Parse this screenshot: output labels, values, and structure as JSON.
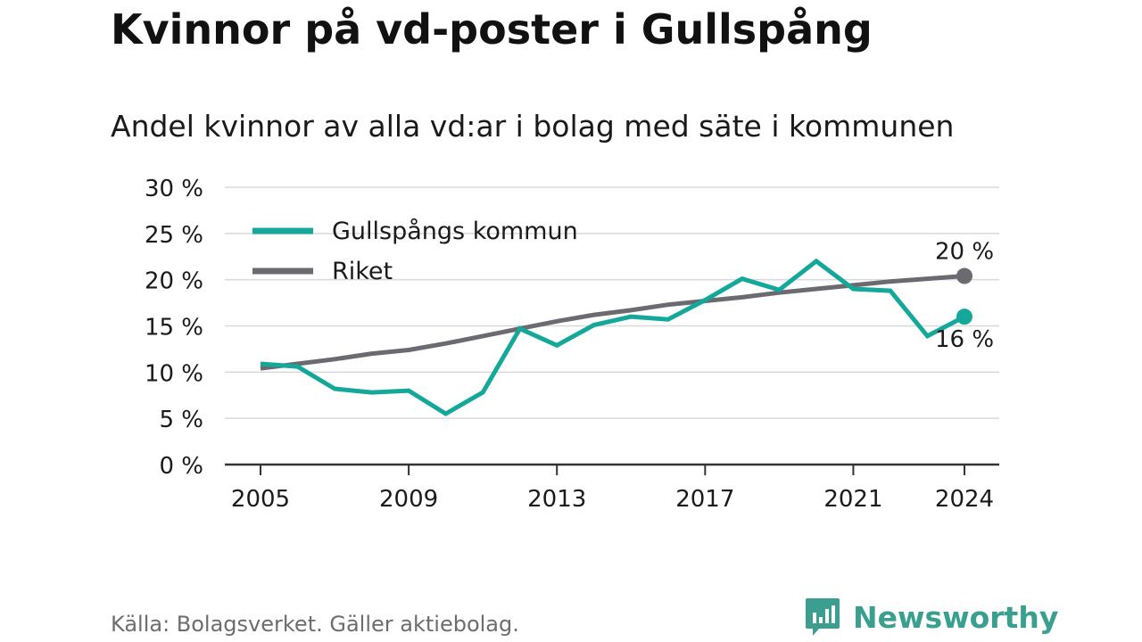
{
  "header": {
    "title": "Kvinnor på vd-poster i Gullspång",
    "subtitle": "Andel kvinnor av alla vd:ar i bolag med säte i kommunen"
  },
  "footer": {
    "source": "Källa: Bolagsverket. Gäller aktiebolag.",
    "brand_name": "Newsworthy",
    "brand_icon": "newsworthy-logo-icon"
  },
  "colors": {
    "gullspang": "#14a89a",
    "riket": "#6b6a70",
    "grid": "#d9d9d9",
    "axis": "#333333",
    "brand": "#3a9f8f"
  },
  "chart_data": {
    "type": "line",
    "title": "Kvinnor på vd-poster i Gullspång",
    "subtitle": "Andel kvinnor av alla vd:ar i bolag med säte i kommunen",
    "x": [
      2005,
      2006,
      2007,
      2008,
      2009,
      2010,
      2011,
      2012,
      2013,
      2014,
      2015,
      2016,
      2017,
      2018,
      2019,
      2020,
      2021,
      2022,
      2023,
      2024
    ],
    "x_ticks": [
      "2005",
      "2009",
      "2013",
      "2017",
      "2021",
      "2024"
    ],
    "y_ticks": [
      "0 %",
      "5 %",
      "10 %",
      "15 %",
      "20 %",
      "25 %",
      "30 %"
    ],
    "ylim": [
      0,
      30
    ],
    "grid": true,
    "legend_position": "top-left",
    "series": [
      {
        "name": "Gullspångs kommun",
        "values": [
          10.9,
          10.6,
          8.2,
          7.8,
          8.0,
          5.5,
          7.8,
          14.7,
          12.9,
          15.1,
          16.0,
          15.7,
          17.8,
          20.1,
          18.9,
          22.0,
          19.0,
          18.8,
          13.9,
          16.0
        ],
        "end_label": "16 %"
      },
      {
        "name": "Riket",
        "values": [
          10.4,
          10.9,
          11.4,
          12.0,
          12.4,
          13.1,
          13.9,
          14.7,
          15.5,
          16.2,
          16.7,
          17.3,
          17.7,
          18.1,
          18.6,
          19.0,
          19.4,
          19.8,
          20.1,
          20.4
        ],
        "end_label": "20 %"
      }
    ]
  }
}
